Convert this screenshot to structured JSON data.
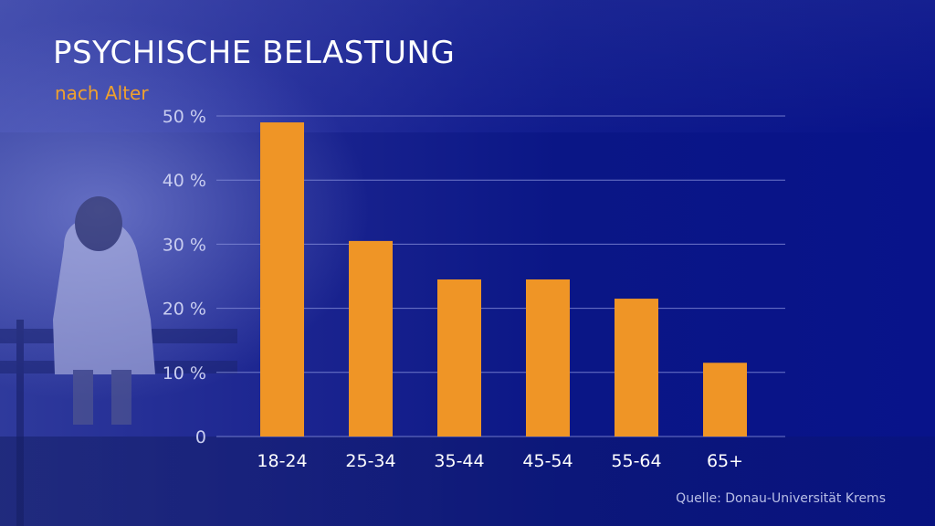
{
  "title": "PSYCHISCHE BELASTUNG",
  "subtitle": "nach Alter",
  "source": "Quelle: Donau-Universität Krems",
  "colors": {
    "bar": "#ef9526",
    "accent": "#f0a12c",
    "axis_text": "#c9cdf0",
    "grid": "#8089d6",
    "background": "#0a1686"
  },
  "chart_data": {
    "type": "bar",
    "title": "PSYCHISCHE BELASTUNG",
    "subtitle": "nach Alter",
    "categories": [
      "18-24",
      "25-34",
      "35-44",
      "45-54",
      "55-64",
      "65+"
    ],
    "values": [
      49,
      30.5,
      24.5,
      24.5,
      21.5,
      11.5
    ],
    "ylim": [
      0,
      50
    ],
    "yticks": [
      0,
      10,
      20,
      30,
      40,
      50
    ],
    "ytick_labels": [
      "0",
      "10 %",
      "20 %",
      "30 %",
      "40 %",
      "50 %"
    ],
    "xlabel": "",
    "ylabel": "",
    "grid": true,
    "legend": "none"
  }
}
